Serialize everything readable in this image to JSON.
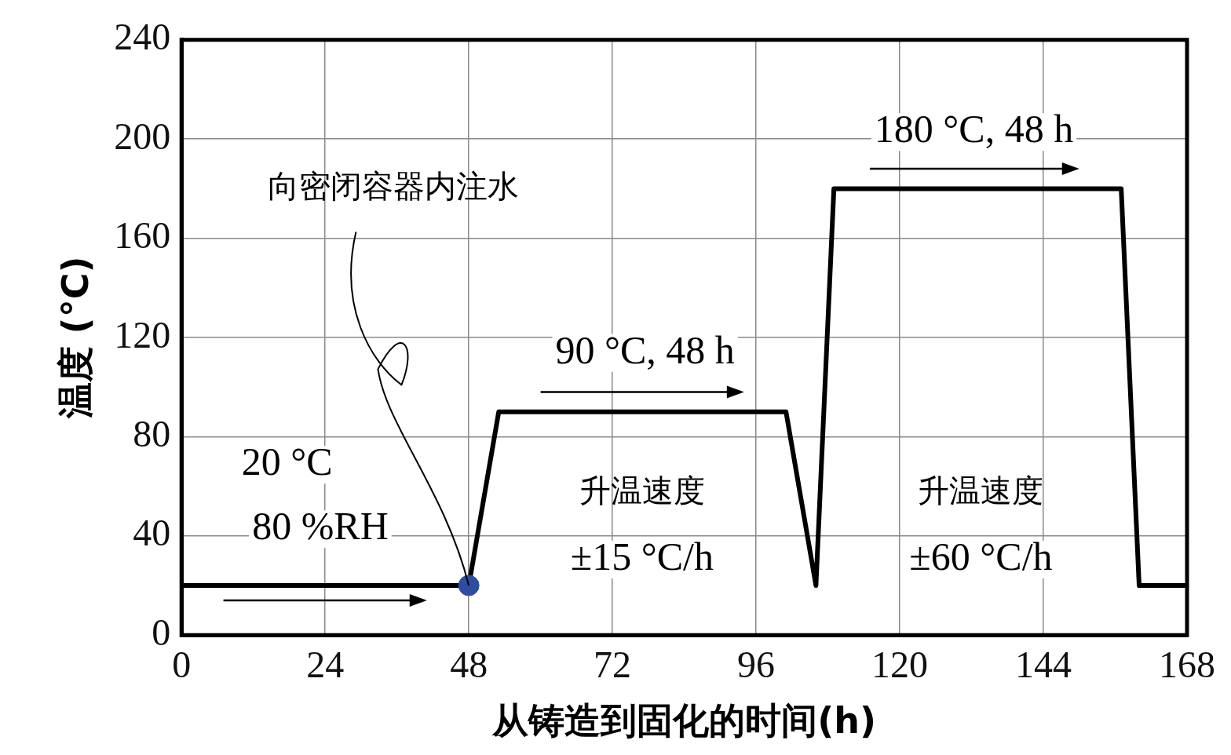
{
  "chart_data": {
    "type": "line",
    "xlabel": "从铸造到固化的时间(h)",
    "ylabel": "温度 (°C)",
    "xlim": [
      0,
      168
    ],
    "xticks": [
      0,
      24,
      48,
      72,
      96,
      120,
      144,
      168
    ],
    "ylim": [
      0,
      240
    ],
    "yticks": [
      0,
      40,
      80,
      120,
      160,
      200,
      240
    ],
    "grid": true,
    "legend": false,
    "series": [
      {
        "type": "line",
        "color": "#000000",
        "x": [
          0,
          48,
          53,
          101,
          106,
          109,
          157,
          160,
          168
        ],
        "values": [
          20,
          20,
          90,
          90,
          20,
          180,
          180,
          20,
          20
        ],
        "marker": "none"
      },
      {
        "type": "scatter",
        "color": "#2f4da0",
        "x": [
          48
        ],
        "values": [
          20
        ],
        "marker": "circle"
      }
    ],
    "annotations": [
      "20 °C",
      "80 %RH",
      "90 °C, 48 h",
      "180 °C, 48 h",
      "升温速度",
      "±15 °C/h",
      "升温速度",
      "±60 °C/h",
      {
        "text": "向密闭容器内注水",
        "x": 48,
        "y": 20
      }
    ]
  }
}
